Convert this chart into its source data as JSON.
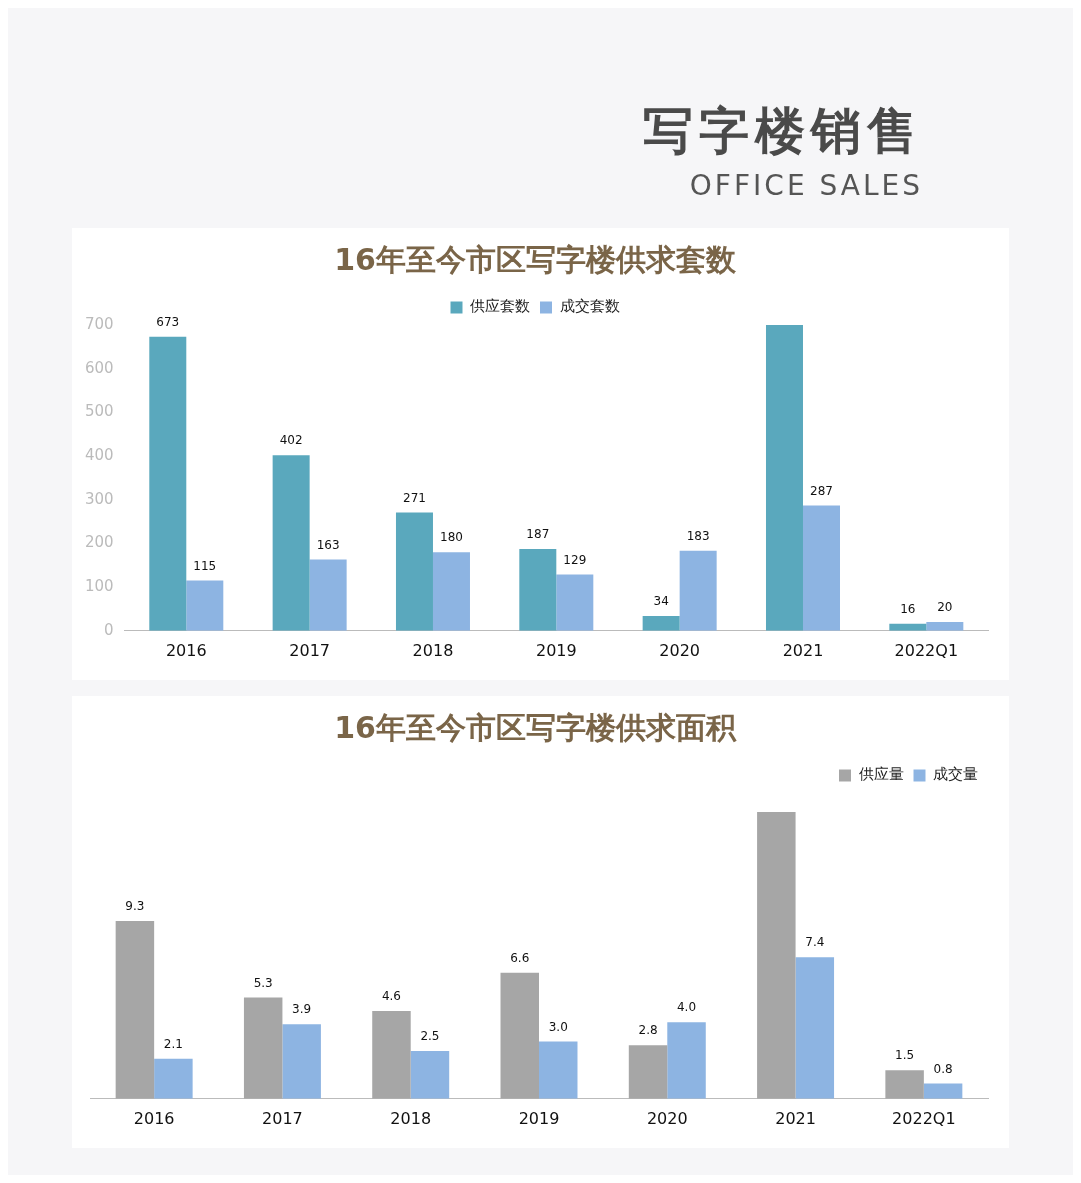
{
  "chart_data": [
    {
      "type": "other",
      "title": "写字楼销售",
      "subtitle": "OFFICE SALES"
    },
    {
      "type": "bar",
      "title": "16年至今市区写字楼供求套数",
      "categories": [
        "2016",
        "2017",
        "2018",
        "2019",
        "2020",
        "2021",
        "2022Q1"
      ],
      "series": [
        {
          "name": "供应套数",
          "color": "#5aa8bd",
          "values": [
            673,
            402,
            271,
            187,
            34,
            700,
            16
          ],
          "value_labels": [
            "673",
            "402",
            "271",
            "187",
            "34",
            null,
            "16"
          ]
        },
        {
          "name": "成交套数",
          "color": "#8db4e2",
          "values": [
            115,
            163,
            180,
            129,
            183,
            287,
            20
          ],
          "value_labels": [
            "115",
            "163",
            "180",
            "129",
            "183",
            "287",
            "20"
          ]
        }
      ],
      "ylim": [
        0,
        700
      ],
      "yticks": [
        0,
        100,
        200,
        300,
        400,
        500,
        600,
        700
      ],
      "grid": false,
      "legend": "top"
    },
    {
      "type": "bar",
      "title": "16年至今市区写字楼供求面积",
      "categories": [
        "2016",
        "2017",
        "2018",
        "2019",
        "2020",
        "2021",
        "2022Q1"
      ],
      "series": [
        {
          "name": "供应量",
          "color": "#a6a6a6",
          "values": [
            9.3,
            5.3,
            4.6,
            6.6,
            2.8,
            15.0,
            1.5
          ],
          "value_labels": [
            "9.3",
            "5.3",
            "4.6",
            "6.6",
            "2.8",
            null,
            "1.5"
          ]
        },
        {
          "name": "成交量",
          "color": "#8db4e2",
          "values": [
            2.1,
            3.9,
            2.5,
            3.0,
            4.0,
            7.4,
            0.8
          ],
          "value_labels": [
            "2.1",
            "3.9",
            "2.5",
            "3.0",
            "4.0",
            "7.4",
            "0.8"
          ]
        }
      ],
      "grid": false,
      "legend": "top right",
      "tick_labels": "x"
    }
  ]
}
